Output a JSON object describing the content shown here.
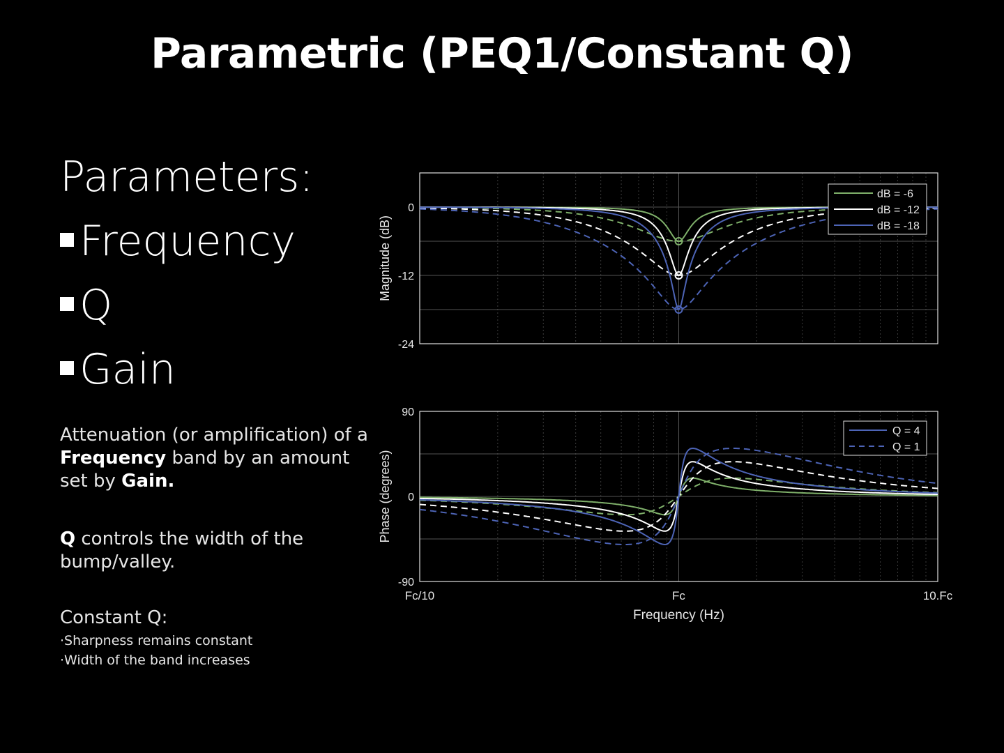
{
  "title": "Parametric (PEQ1/Constant Q)",
  "params": {
    "heading": "Parameters:",
    "items": [
      "Frequency",
      "Q",
      "Gain"
    ]
  },
  "description": {
    "p1_a": "Attenuation (or amplification) of a",
    "p1_b_bold": "Frequency",
    "p1_b": " band by an amount",
    "p1_c": "set by ",
    "p1_c_bold": "Gain.",
    "p2_bold": "Q",
    "p2_a": " controls the width of the",
    "p2_b": "bump/valley.",
    "p3_title": "Constant Q:",
    "p3_items": [
      "Sharpness remains constant",
      "Width of the band increases"
    ]
  },
  "colors": {
    "green": "#7fb06a",
    "white": "#ffffff",
    "blue": "#4d64b6",
    "grid": "#3a3a3a",
    "frame": "#e0e0e0"
  },
  "chart_data": [
    {
      "type": "line",
      "ylabel": "Magnitude (dB)",
      "xscale": "log",
      "xticks": [
        "Fc/10",
        "Fc",
        "10.Fc"
      ],
      "yticks": [
        "0",
        "-12",
        "-24"
      ],
      "ylim": [
        -24,
        6
      ],
      "grid": true,
      "legend": "top-right",
      "legend_entries": [
        "dB = -6",
        "dB = -12",
        "dB = -18"
      ],
      "series": [
        {
          "name": "dB = -6",
          "style": "solid",
          "color": "green",
          "gain": -6,
          "q": 4
        },
        {
          "name": "dB = -6",
          "style": "dashed",
          "color": "green",
          "gain": -6,
          "q": 1
        },
        {
          "name": "dB = -12",
          "style": "solid",
          "color": "white",
          "gain": -12,
          "q": 4
        },
        {
          "name": "dB = -12",
          "style": "dashed",
          "color": "white",
          "gain": -12,
          "q": 1
        },
        {
          "name": "dB = -18",
          "style": "solid",
          "color": "blue",
          "gain": -18,
          "q": 4
        },
        {
          "name": "dB = -18",
          "style": "dashed",
          "color": "blue",
          "gain": -18,
          "q": 1
        }
      ]
    },
    {
      "type": "line",
      "xlabel": "Frequency (Hz)",
      "ylabel": "Phase (degrees)",
      "xscale": "log",
      "xticks": [
        "Fc/10",
        "Fc",
        "10.Fc"
      ],
      "yticks": [
        "90",
        "0",
        "-90"
      ],
      "ylim": [
        -90,
        90
      ],
      "grid": true,
      "legend": "top-right",
      "legend_entries": [
        "Q = 4",
        "Q = 1"
      ]
    }
  ]
}
